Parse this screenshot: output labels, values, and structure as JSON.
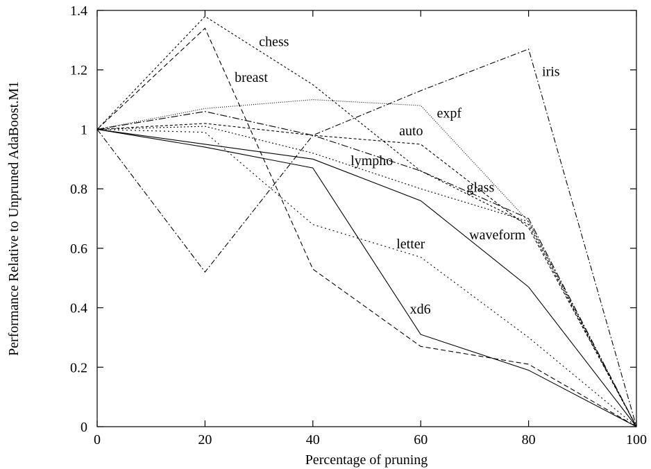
{
  "chart_data": {
    "type": "line",
    "xlabel": "Percentage of pruning",
    "ylabel": "Performance Relative to Unpruned AdaBoost.M1",
    "xlim": [
      0,
      100
    ],
    "ylim": [
      0,
      1.4
    ],
    "xticks": [
      0,
      20,
      40,
      60,
      80,
      100
    ],
    "yticks": [
      0,
      0.2,
      0.4,
      0.6,
      0.8,
      1,
      1.2,
      1.4
    ],
    "ytick_labels": [
      "0",
      "0.2",
      "0.4",
      "0.6",
      "0.8",
      "1",
      "1.2",
      "1.4"
    ],
    "grid": false,
    "legend": "inline labels",
    "x": [
      0,
      20,
      40,
      60,
      80,
      100
    ],
    "series": [
      {
        "name": "chess",
        "values": [
          1.0,
          1.38,
          1.15,
          0.86,
          0.68,
          0.0
        ],
        "dash": "3,3"
      },
      {
        "name": "breast",
        "values": [
          1.0,
          1.34,
          0.53,
          0.27,
          0.21,
          0.0
        ],
        "dash": "7,4"
      },
      {
        "name": "iris",
        "values": [
          1.0,
          0.52,
          0.98,
          1.13,
          1.27,
          0.0
        ],
        "dash": "8,3,2,3"
      },
      {
        "name": "expf",
        "values": [
          1.0,
          1.07,
          1.1,
          1.08,
          0.69,
          0.0
        ],
        "dash": "1,2"
      },
      {
        "name": "auto",
        "values": [
          1.0,
          1.02,
          0.98,
          0.95,
          0.67,
          0.0
        ],
        "dash": "4,3"
      },
      {
        "name": "lympho",
        "values": [
          1.0,
          1.01,
          0.92,
          0.8,
          0.69,
          0.0
        ],
        "dash": "2,3"
      },
      {
        "name": "glass",
        "values": [
          1.0,
          1.06,
          0.98,
          0.86,
          0.7,
          0.0
        ],
        "dash": "10,3,2,3"
      },
      {
        "name": "letter",
        "values": [
          1.0,
          0.99,
          0.68,
          0.57,
          0.3,
          0.0
        ],
        "dash": "2,4"
      },
      {
        "name": "waveform",
        "values": [
          1.0,
          0.95,
          0.9,
          0.76,
          0.47,
          0.0
        ],
        "dash": ""
      },
      {
        "name": "xd6",
        "values": [
          1.0,
          0.94,
          0.87,
          0.31,
          0.19,
          0.0
        ],
        "dash": ""
      }
    ],
    "labels": [
      {
        "series": "chess",
        "text": "chess",
        "x": 30,
        "y": 1.28
      },
      {
        "series": "breast",
        "text": "breast",
        "x": 25.5,
        "y": 1.16
      },
      {
        "series": "iris",
        "text": "iris",
        "x": 82.5,
        "y": 1.18
      },
      {
        "series": "expf",
        "text": "expf",
        "x": 63,
        "y": 1.04
      },
      {
        "series": "auto",
        "text": "auto",
        "x": 56,
        "y": 0.98
      },
      {
        "series": "lympho",
        "text": "lympho",
        "x": 47,
        "y": 0.88
      },
      {
        "series": "glass",
        "text": "glass",
        "x": 68.5,
        "y": 0.79
      },
      {
        "series": "letter",
        "text": "letter",
        "x": 55.5,
        "y": 0.6
      },
      {
        "series": "waveform",
        "text": "waveform",
        "x": 69,
        "y": 0.63
      },
      {
        "series": "xd6",
        "text": "xd6",
        "x": 58,
        "y": 0.38
      }
    ]
  }
}
